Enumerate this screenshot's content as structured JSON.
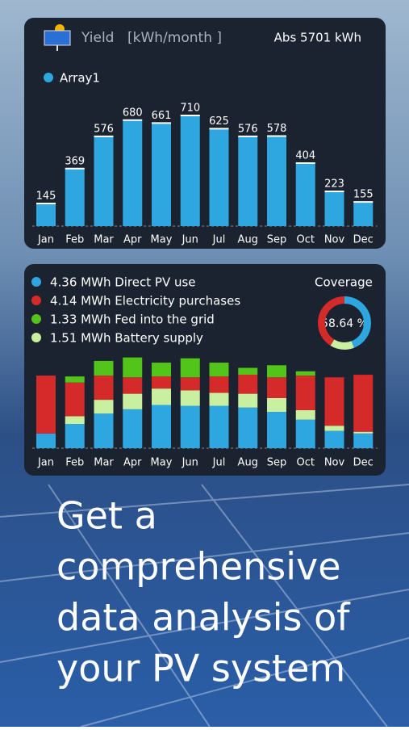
{
  "chart_data": [
    {
      "type": "bar",
      "title": "Yield",
      "unit": "[kWh/month ]",
      "annotation": "Abs  5701 kWh",
      "categories": [
        "Jan",
        "Feb",
        "Mar",
        "Apr",
        "May",
        "Jun",
        "Jul",
        "Aug",
        "Sep",
        "Oct",
        "Nov",
        "Dec"
      ],
      "series": [
        {
          "name": "Array1",
          "color": "#2ea7e0",
          "values": [
            145,
            369,
            576,
            680,
            661,
            710,
            625,
            576,
            578,
            404,
            223,
            155
          ]
        }
      ]
    },
    {
      "type": "stacked_bar",
      "categories": [
        "Jan",
        "Feb",
        "Mar",
        "Apr",
        "May",
        "Jun",
        "Jul",
        "Aug",
        "Sep",
        "Oct",
        "Nov",
        "Dec"
      ],
      "series": [
        {
          "name": "4.36 MWh Direct PV use",
          "color": "#2ea7e0",
          "values": [
            170,
            280,
            400,
            450,
            500,
            490,
            490,
            470,
            420,
            330,
            200,
            170
          ]
        },
        {
          "name": "4.14 MWh Electricity purchases",
          "color": "#d42a2a",
          "values": [
            670,
            390,
            280,
            190,
            140,
            150,
            190,
            220,
            240,
            400,
            560,
            660
          ]
        },
        {
          "name": "1.33 MWh Fed into the grid",
          "color": "#52c41a",
          "values": [
            0,
            70,
            170,
            230,
            160,
            220,
            160,
            80,
            140,
            50,
            0,
            0
          ]
        },
        {
          "name": "1.51 MWh Battery supply",
          "color": "#c8f0a0",
          "values": [
            0,
            90,
            160,
            180,
            190,
            180,
            150,
            160,
            160,
            110,
            60,
            20
          ]
        }
      ],
      "coverage_title": "Coverage",
      "coverage_label": "58.64 %"
    }
  ],
  "tagline": [
    "Get a",
    "comprehensive",
    "data analysis of",
    "your PV system"
  ]
}
